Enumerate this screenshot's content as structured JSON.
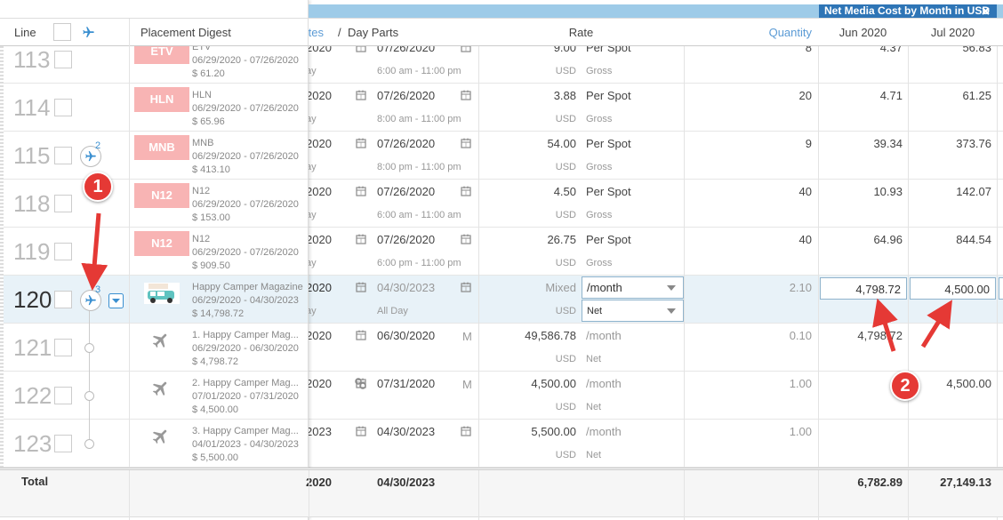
{
  "banner": "Net Media Cost by Month in USD",
  "header": {
    "line": "Line",
    "placement": "Placement Digest",
    "dates": "Dates",
    "separator": "/",
    "day_parts": "Day Parts",
    "rate": "Rate",
    "quantity": "Quantity",
    "months": [
      "Jun 2020",
      "Jul 2020"
    ]
  },
  "rows": [
    {
      "line": "113",
      "badge": "ETV",
      "name": "ETV",
      "dates": "06/29/2020 - 07/26/2020",
      "cost": "$ 61.20",
      "start": "2020",
      "start_sub": "ay",
      "end": "07/26/2020",
      "end_sub": "6:00 am - 11:00 pm",
      "rate": "9.00",
      "rate_unit": "Per Spot",
      "currency": "USD",
      "basis": "Gross",
      "quantity": "8",
      "jun": "4.37",
      "jul": "56.83"
    },
    {
      "line": "114",
      "badge": "HLN",
      "name": "HLN",
      "dates": "06/29/2020 - 07/26/2020",
      "cost": "$ 65.96",
      "start": "2020",
      "start_sub": "ay",
      "end": "07/26/2020",
      "end_sub": "8:00 am - 11:00 pm",
      "rate": "3.88",
      "rate_unit": "Per Spot",
      "currency": "USD",
      "basis": "Gross",
      "quantity": "20",
      "jun": "4.71",
      "jul": "61.25"
    },
    {
      "line": "115",
      "plane_count": "2",
      "badge": "MNB",
      "name": "MNB",
      "dates": "06/29/2020 - 07/26/2020",
      "cost": "$ 413.10",
      "start": "2020",
      "start_sub": "ay",
      "end": "07/26/2020",
      "end_sub": "8:00 pm - 11:00 pm",
      "rate": "54.00",
      "rate_unit": "Per Spot",
      "currency": "USD",
      "basis": "Gross",
      "quantity": "9",
      "jun": "39.34",
      "jul": "373.76"
    },
    {
      "line": "118",
      "badge": "N12",
      "name": "N12",
      "dates": "06/29/2020 - 07/26/2020",
      "cost": "$ 153.00",
      "start": "2020",
      "start_sub": "ay",
      "end": "07/26/2020",
      "end_sub": "6:00 am - 11:00 am",
      "rate": "4.50",
      "rate_unit": "Per Spot",
      "currency": "USD",
      "basis": "Gross",
      "quantity": "40",
      "jun": "10.93",
      "jul": "142.07"
    },
    {
      "line": "119",
      "badge": "N12",
      "name": "N12",
      "dates": "06/29/2020 - 07/26/2020",
      "cost": "$ 909.50",
      "start": "2020",
      "start_sub": "ay",
      "end": "07/26/2020",
      "end_sub": "6:00 pm - 11:00 pm",
      "rate": "26.75",
      "rate_unit": "Per Spot",
      "currency": "USD",
      "basis": "Gross",
      "quantity": "40",
      "jun": "64.96",
      "jul": "844.54"
    },
    {
      "line": "120",
      "plane_count": "3",
      "highlighted": true,
      "name": "Happy Camper Magazine",
      "dates": "06/29/2020 - 04/30/2023",
      "cost": "$ 14,798.72",
      "start": "2020",
      "start_sub": "ay",
      "end": "04/30/2023",
      "end_sub": "All Day",
      "rate": "Mixed",
      "rate_unit": "/month",
      "currency": "USD",
      "basis": "Net",
      "quantity": "2.10",
      "jun": "4,798.72",
      "jul": "4,500.00",
      "editable": true
    },
    {
      "line": "121",
      "child": true,
      "name": "1. Happy Camper Mag...",
      "dates": "06/29/2020 - 06/30/2020",
      "cost": "$ 4,798.72",
      "start": "2020",
      "end": "06/30/2020",
      "end_flag": "M",
      "rate": "49,586.78",
      "rate_unit": "/month",
      "currency": "USD",
      "basis": "Net",
      "quantity": "0.10",
      "jun": "4,798.72"
    },
    {
      "line": "122",
      "child": true,
      "linked": true,
      "name": "2. Happy Camper Mag...",
      "dates": "07/01/2020 - 07/31/2020",
      "cost": "$ 4,500.00",
      "start": "2020",
      "end": "07/31/2020",
      "end_flag": "M",
      "rate": "4,500.00",
      "rate_unit": "/month",
      "currency": "USD",
      "basis": "Net",
      "quantity": "1.00",
      "jul": "4,500.00"
    },
    {
      "line": "123",
      "child": true,
      "name": "3. Happy Camper Mag...",
      "dates": "04/01/2023 - 04/30/2023",
      "cost": "$ 5,500.00",
      "start": "2023",
      "end": "04/30/2023",
      "rate": "5,500.00",
      "rate_unit": "/month",
      "currency": "USD",
      "basis": "Net",
      "quantity": "1.00"
    }
  ],
  "total": {
    "label": "Total",
    "start": "2020",
    "end": "04/30/2023",
    "jun": "6,782.89",
    "jul": "27,149.13"
  },
  "annotations": [
    "1",
    "2"
  ]
}
